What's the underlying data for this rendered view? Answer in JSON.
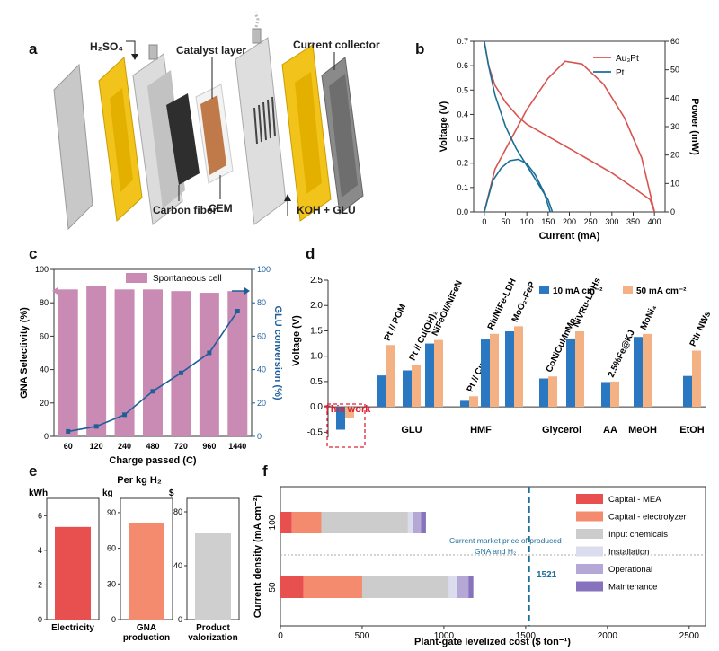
{
  "panel_labels": [
    "a",
    "b",
    "c",
    "d",
    "e",
    "f"
  ],
  "colors": {
    "au3pt": "#d9534f",
    "pt": "#1a6e96",
    "bar_c": "#c98bb3",
    "gluline": "#1f5f99",
    "d_blue": "#2a78c2",
    "d_orange": "#f4b183",
    "e_elec": "#e8504f",
    "e_gna": "#f48a6e",
    "e_prod": "#cfcfcf",
    "vline": "#1f6f9a"
  },
  "panel_a": {
    "labels": {
      "h2so4": "H₂SO₄",
      "catalyst_layer": "Catalyst layer",
      "current_collector": "Current collector",
      "carbon_fiber": "Carbon fiber",
      "cem": "CEM",
      "koh_glu": "KOH + GLU"
    }
  },
  "chart_data": [
    {
      "id": "b",
      "type": "line",
      "xlabel": "Current (mA)",
      "ylabel": "Voltage (V)",
      "y2label": "Power (mW)",
      "xlim": [
        -25,
        425
      ],
      "ylim": [
        0,
        0.7
      ],
      "y2lim": [
        0,
        60
      ],
      "xticks": [
        0,
        50,
        100,
        150,
        200,
        250,
        300,
        350,
        400
      ],
      "yticks": [
        0.0,
        0.1,
        0.2,
        0.3,
        0.4,
        0.5,
        0.6,
        0.7
      ],
      "y2ticks": [
        0,
        10,
        20,
        30,
        40,
        50,
        60
      ],
      "legend": [
        "Au₃Pt",
        "Pt"
      ],
      "legend_position": "top-right",
      "series": [
        {
          "name": "Au₃Pt voltage",
          "axis": "left",
          "x": [
            0,
            10,
            25,
            50,
            80,
            100,
            150,
            200,
            250,
            300,
            350,
            390,
            400
          ],
          "y": [
            0.7,
            0.6,
            0.52,
            0.45,
            0.39,
            0.36,
            0.31,
            0.26,
            0.21,
            0.16,
            0.1,
            0.05,
            0.0
          ]
        },
        {
          "name": "Au₃Pt power",
          "axis": "right",
          "x": [
            0,
            25,
            50,
            100,
            150,
            190,
            230,
            280,
            330,
            370,
            400
          ],
          "y": [
            0,
            15,
            22,
            36,
            47,
            53,
            52,
            45,
            33,
            19,
            0
          ]
        },
        {
          "name": "Pt voltage",
          "axis": "left",
          "x": [
            0,
            10,
            25,
            50,
            75,
            100,
            125,
            150,
            160
          ],
          "y": [
            0.7,
            0.6,
            0.48,
            0.35,
            0.26,
            0.19,
            0.12,
            0.05,
            0.0
          ]
        },
        {
          "name": "Pt power",
          "axis": "right",
          "x": [
            0,
            20,
            40,
            60,
            80,
            100,
            120,
            140,
            155
          ],
          "y": [
            0,
            11,
            15.5,
            18,
            18.5,
            17,
            13,
            7,
            0
          ]
        }
      ]
    },
    {
      "id": "c",
      "type": "bar",
      "xlabel": "Charge passed (C)",
      "ylabel": "GNA Selectivity (%)",
      "y2label": "GLU conversion (%)",
      "categories": [
        "60",
        "120",
        "240",
        "480",
        "720",
        "960",
        "1440"
      ],
      "ylim": [
        0,
        100
      ],
      "y2lim": [
        0,
        100
      ],
      "yticks": [
        0,
        20,
        40,
        60,
        80,
        100
      ],
      "y2ticks": [
        0,
        20,
        40,
        60,
        80,
        100
      ],
      "legend": [
        "Spontaneous cell"
      ],
      "legend_position": "top",
      "series": [
        {
          "name": "GNA Selectivity",
          "axis": "left",
          "values": [
            88,
            90,
            88,
            88,
            87,
            86,
            87
          ]
        },
        {
          "name": "GLU conversion",
          "axis": "right",
          "values": [
            3,
            6,
            13,
            27,
            38,
            50,
            75
          ]
        }
      ]
    },
    {
      "id": "d",
      "type": "bar",
      "ylabel": "Voltage (V)",
      "ylim": [
        -0.6,
        2.5
      ],
      "yticks": [
        -0.5,
        0.0,
        0.5,
        1.0,
        1.5,
        2.0,
        2.5
      ],
      "legend": [
        "10 mA cm⁻²",
        "50 mA cm⁻²"
      ],
      "legend_position": "top-right",
      "groups": [
        "GLU",
        "HMF",
        "Glycerol",
        "AA",
        "MeOH",
        "EtOH"
      ],
      "this_work_label": "This work",
      "this_work": {
        "v10": -0.45,
        "v50": -0.22
      },
      "bars": [
        {
          "label": "Pt // POM",
          "group": "GLU",
          "v10": 0.62,
          "v50": 1.22
        },
        {
          "label": "Pt // Cu(OH)₂",
          "group": "GLU",
          "v10": 0.72,
          "v50": 0.83
        },
        {
          "label": "NiFeOI//NiFeN",
          "group": "GLU",
          "v10": 1.25,
          "v50": 1.32
        },
        {
          "label": "Pt // Cu foam",
          "group": "HMF",
          "v10": 0.12,
          "v50": 0.21
        },
        {
          "label": "Rh/NiFe-LDH",
          "group": "HMF",
          "v10": 1.33,
          "v50": 1.44
        },
        {
          "label": "MoO₂-FeP",
          "group": "HMF",
          "v10": 1.49,
          "v50": 1.59
        },
        {
          "label": "CoNiCuMnMo",
          "group": "Glycerol",
          "v10": 0.56,
          "v50": 0.6
        },
        {
          "label": "NiVRu-LDHs",
          "group": "Glycerol",
          "v10": 1.35,
          "v50": 1.49
        },
        {
          "label": "2.5%Fe@KJ",
          "group": "AA",
          "v10": 0.49,
          "v50": 0.5
        },
        {
          "label": "MoNi₄",
          "group": "MeOH",
          "v10": 1.38,
          "v50": 1.44
        },
        {
          "label": "PtIr NWs",
          "group": "EtOH",
          "v10": 0.61,
          "v50": 1.11
        }
      ]
    },
    {
      "id": "e",
      "type": "bar",
      "title": "Per kg H₂",
      "subplots": [
        {
          "unit": "kWh",
          "category": "Electricity",
          "value": 5.35,
          "ylim": [
            0,
            7
          ],
          "yticks": [
            0,
            2,
            4,
            6
          ]
        },
        {
          "unit": "kg",
          "category": "GNA production",
          "value": 81,
          "ylim": [
            0,
            102
          ],
          "yticks": [
            0,
            30,
            60,
            90
          ]
        },
        {
          "unit": "$",
          "category": "Product valorization",
          "value": 64,
          "ylim": [
            0,
            90
          ],
          "yticks": [
            0,
            40,
            80
          ]
        }
      ]
    },
    {
      "id": "f",
      "type": "bar",
      "orientation": "horizontal",
      "stacked": true,
      "xlabel": "Plant-gate levelized cost ($ ton⁻¹)",
      "ylabel": "Current density (mA cm⁻²)",
      "xlim": [
        0,
        2600
      ],
      "xticks": [
        0,
        500,
        1000,
        1500,
        2000,
        2500
      ],
      "categories": [
        "100",
        "50"
      ],
      "components": [
        "Capital - MEA",
        "Capital - electrolyzer",
        "Input chemicals",
        "Installation",
        "Operational",
        "Maintenance"
      ],
      "component_colors": [
        "#e8504f",
        "#f48a6e",
        "#cccccc",
        "#dcdcef",
        "#b6a8d6",
        "#8672bd"
      ],
      "values": [
        [
          70,
          180,
          530,
          30,
          50,
          30
        ],
        [
          140,
          360,
          530,
          50,
          70,
          30
        ]
      ],
      "reference": {
        "value": 1521,
        "label": "1521",
        "annotation": [
          "Current market price of produced",
          "GNA and H₂"
        ]
      }
    }
  ]
}
